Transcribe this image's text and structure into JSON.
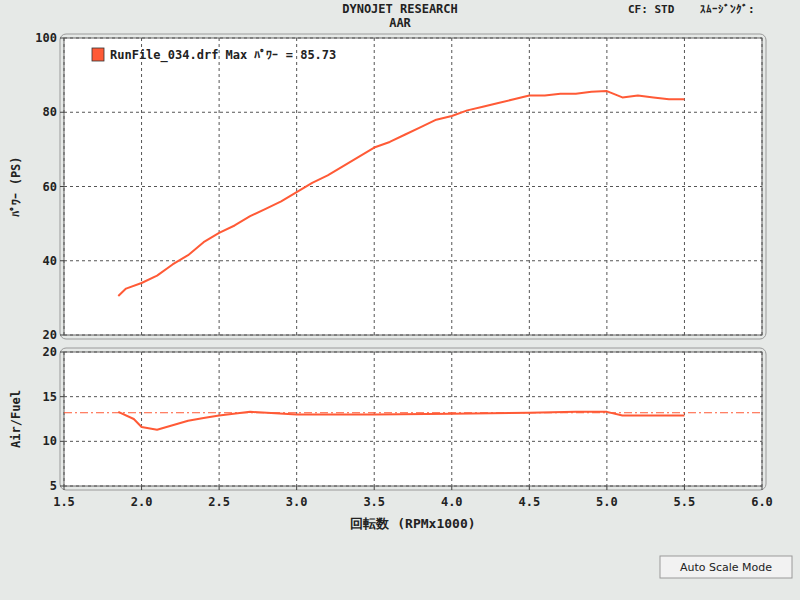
{
  "header": {
    "title": "DYNOJET RESEARCH",
    "subtitle": "AAR",
    "cf": "CF: STD",
    "smoothing": "ｽﾑｰｼﾞﾝｸﾞ:"
  },
  "footer": {
    "button": "Auto Scale Mode"
  },
  "chart_data": [
    {
      "type": "line",
      "y_label": "ﾊﾟﾜｰ (PS)",
      "x": [
        1.85,
        1.9,
        2.0,
        2.1,
        2.2,
        2.3,
        2.4,
        2.5,
        2.6,
        2.7,
        2.8,
        2.9,
        3.0,
        3.1,
        3.2,
        3.3,
        3.4,
        3.5,
        3.6,
        3.7,
        3.8,
        3.9,
        4.0,
        4.1,
        4.2,
        4.3,
        4.4,
        4.5,
        4.6,
        4.7,
        4.8,
        4.9,
        5.0,
        5.1,
        5.2,
        5.3,
        5.4,
        5.5
      ],
      "series": [
        {
          "name": "RunFile_034.drf Max ﾊﾟﾜｰ = 85.73",
          "color": "#ff5a36",
          "values": [
            30.5,
            32.5,
            34,
            36,
            39,
            41.5,
            45,
            47.5,
            49.5,
            52,
            54,
            56,
            58.5,
            61,
            63,
            65.5,
            68,
            70.5,
            72,
            74,
            76,
            78,
            79,
            80.5,
            81.5,
            82.5,
            83.5,
            84.5,
            84.5,
            85,
            85,
            85.5,
            85.7,
            84,
            84.5,
            84,
            83.5,
            83.5
          ]
        }
      ],
      "xlim": [
        1.5,
        6.0
      ],
      "xticks": [
        1.5,
        {
          "value": 2,
          "label": "2.0"
        },
        2.5,
        {
          "value": 3,
          "label": "3.0"
        },
        3.5,
        {
          "value": 4,
          "label": "4.0"
        },
        4.5,
        {
          "value": 5,
          "label": "5.0"
        },
        5.5,
        {
          "value": 6,
          "label": "6.0"
        }
      ],
      "ylim": [
        20,
        100
      ],
      "yticks": [
        20,
        40,
        60,
        80,
        100
      ],
      "grid": true,
      "legend": "upper left",
      "tick_labels": "y"
    },
    {
      "type": "line",
      "y_label": "Air/Fuel",
      "x_label": "回転数 (RPMx1000)",
      "color": "#ff5a36",
      "x": [
        1.85,
        1.95,
        2.0,
        2.1,
        2.2,
        2.3,
        2.4,
        2.5,
        2.7,
        3.0,
        3.5,
        4.0,
        4.5,
        4.8,
        5.0,
        5.1,
        5.3,
        5.5
      ],
      "values": [
        13.3,
        12.5,
        11.6,
        11.3,
        11.8,
        12.3,
        12.6,
        12.9,
        13.3,
        13.0,
        13.0,
        13.1,
        13.2,
        13.3,
        13.3,
        12.9,
        12.9,
        12.9
      ],
      "reference_line": 13.2,
      "xlim": [
        1.5,
        6.0
      ],
      "xticks": [
        1.5,
        {
          "value": 2,
          "label": "2.0"
        },
        2.5,
        {
          "value": 3,
          "label": "3.0"
        },
        3.5,
        {
          "value": 4,
          "label": "4.0"
        },
        4.5,
        {
          "value": 5,
          "label": "5.0"
        },
        5.5,
        {
          "value": 6,
          "label": "6.0"
        }
      ],
      "ylim": [
        5,
        20
      ],
      "yticks": [
        5,
        10,
        15,
        20
      ],
      "grid": true
    }
  ]
}
